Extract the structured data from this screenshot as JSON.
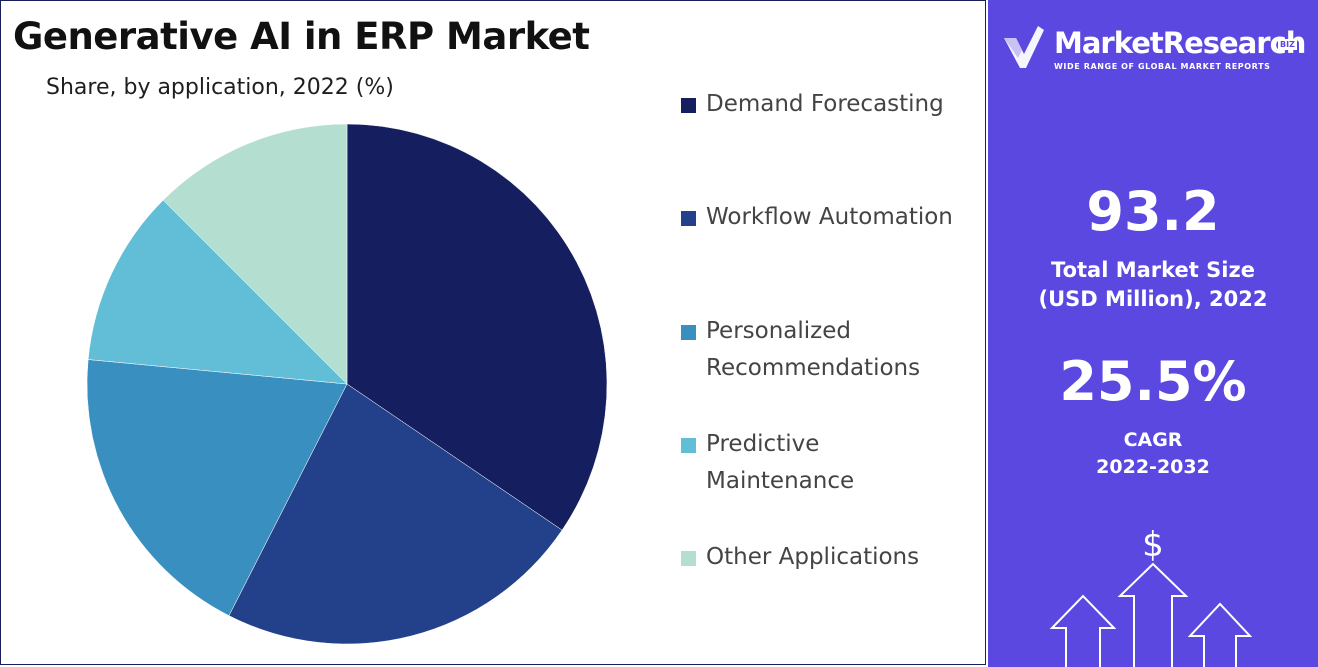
{
  "chart_data": {
    "type": "pie",
    "title": "Generative AI in ERP Market",
    "subtitle": "Share, by application, 2022 (%)",
    "start_angle_deg": 0,
    "direction": "clockwise",
    "series": [
      {
        "name": "Demand Forecasting",
        "value": 34.5,
        "color": "#151e5e"
      },
      {
        "name": "Workflow Automation",
        "value": 23.0,
        "color": "#23408b"
      },
      {
        "name": "Personalized Recommendations",
        "value": 19.0,
        "color": "#3a8fc1"
      },
      {
        "name": "Predictive Maintenance",
        "value": 11.0,
        "color": "#62bed6"
      },
      {
        "name": "Other Applications",
        "value": 12.5,
        "color": "#b4dfd0"
      }
    ],
    "legend_position": "right"
  },
  "legend": [
    {
      "lines": [
        "Demand Forecasting"
      ],
      "color": "#151e5e"
    },
    {
      "lines": [
        "Workflow Automation"
      ],
      "color": "#23408b"
    },
    {
      "lines": [
        "Personalized",
        "Recommendations"
      ],
      "color": "#3a8fc1"
    },
    {
      "lines": [
        "Predictive",
        "Maintenance"
      ],
      "color": "#62bed6"
    },
    {
      "lines": [
        "Other Applications"
      ],
      "color": "#b4dfd0"
    }
  ],
  "brand": {
    "name": "MarketResearch",
    "suffix": "BIZ",
    "tagline": "WIDE RANGE OF GLOBAL MARKET REPORTS",
    "accent": "#5b48e0"
  },
  "stats": {
    "market_size_value": "93.2",
    "market_size_label_line1": "Total Market Size",
    "market_size_label_line2": "(USD Million), 2022",
    "cagr_value": "25.5%",
    "cagr_label_line1": "CAGR",
    "cagr_label_line2": "2022-2032"
  },
  "icons": {
    "logo": "checkmark-logo-icon",
    "growth": "growth-arrows-dollar-icon",
    "currency_symbol": "$"
  }
}
